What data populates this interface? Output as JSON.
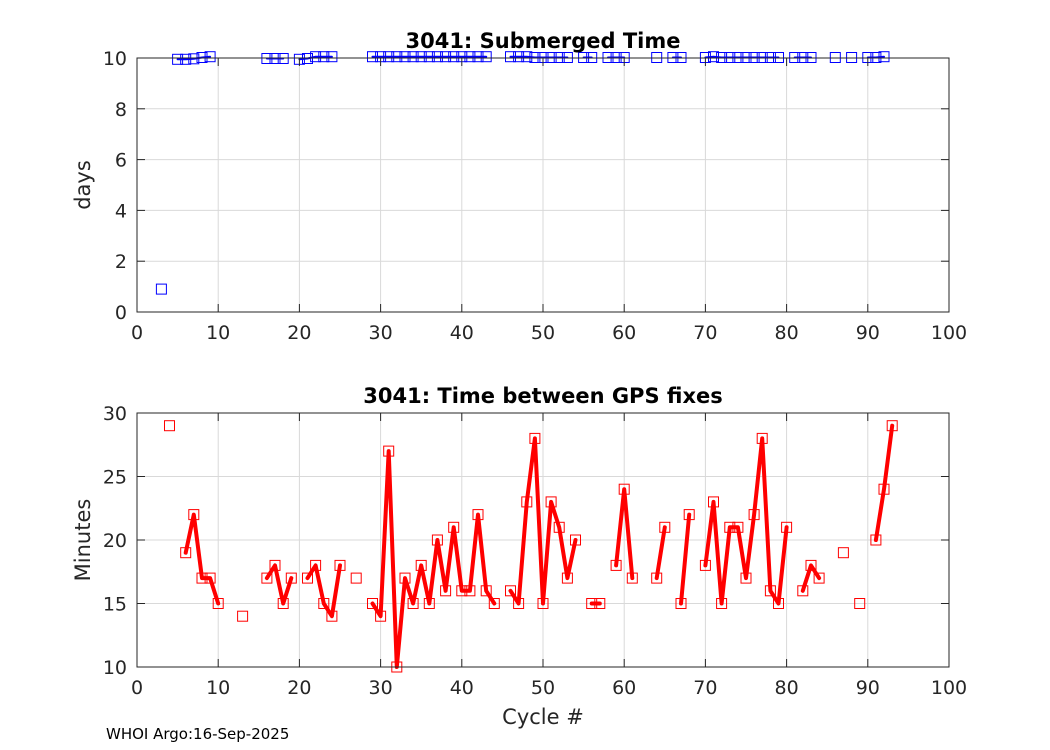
{
  "footer": "WHOI Argo:16-Sep-2025",
  "colors": {
    "top_series": "#0000ff",
    "bottom_series": "#ff0000",
    "grid": "#d9d9d9",
    "axis": "#262626"
  },
  "chart_data": [
    {
      "type": "scatter",
      "title": "3041: Submerged Time",
      "xlabel": "",
      "ylabel": "days",
      "xlim": [
        0,
        100
      ],
      "ylim": [
        0,
        10
      ],
      "xticks": [
        0,
        10,
        20,
        30,
        40,
        50,
        60,
        70,
        80,
        90,
        100
      ],
      "yticks": [
        0,
        2,
        4,
        6,
        8,
        10
      ],
      "grid": true,
      "series": [
        {
          "name": "Submerged Time",
          "marker": "square",
          "line": true,
          "x": [
            3,
            5,
            6,
            7,
            8,
            9,
            16,
            17,
            18,
            20,
            21,
            22,
            23,
            24,
            29,
            30,
            31,
            32,
            33,
            34,
            35,
            36,
            37,
            38,
            39,
            40,
            41,
            42,
            43,
            46,
            47,
            48,
            49,
            50,
            51,
            52,
            53,
            55,
            56,
            58,
            59,
            60,
            64,
            66,
            67,
            70,
            71,
            72,
            73,
            74,
            75,
            76,
            77,
            78,
            79,
            81,
            82,
            83,
            86,
            88,
            90,
            91,
            92
          ],
          "y": [
            0.9,
            9.95,
            9.95,
            9.97,
            10.02,
            10.05,
            9.98,
            9.98,
            9.98,
            9.95,
            9.98,
            10.05,
            10.05,
            10.05,
            10.05,
            10.05,
            10.05,
            10.05,
            10.05,
            10.05,
            10.05,
            10.05,
            10.05,
            10.05,
            10.05,
            10.05,
            10.05,
            10.05,
            10.05,
            10.05,
            10.05,
            10.05,
            10.02,
            10.02,
            10.02,
            10.02,
            10.02,
            10.02,
            10.02,
            10.02,
            10.02,
            10.02,
            10.02,
            10.02,
            10.02,
            10.02,
            10.05,
            10.02,
            10.02,
            10.02,
            10.02,
            10.02,
            10.02,
            10.02,
            10.02,
            10.02,
            10.02,
            10.02,
            10.02,
            10.02,
            10.02,
            10.02,
            10.05
          ]
        }
      ]
    },
    {
      "type": "line",
      "title": "3041: Time between GPS fixes",
      "xlabel": "Cycle #",
      "ylabel": "Minutes",
      "xlim": [
        0,
        100
      ],
      "ylim": [
        10,
        30
      ],
      "xticks": [
        0,
        10,
        20,
        30,
        40,
        50,
        60,
        70,
        80,
        90,
        100
      ],
      "yticks": [
        10,
        15,
        20,
        25,
        30
      ],
      "grid": true,
      "series": [
        {
          "name": "Time between GPS fixes",
          "marker": "square",
          "line": true,
          "x": [
            4,
            6,
            7,
            8,
            9,
            10,
            13,
            16,
            17,
            18,
            19,
            21,
            22,
            23,
            24,
            25,
            27,
            29,
            30,
            31,
            32,
            33,
            34,
            35,
            36,
            37,
            38,
            39,
            40,
            41,
            42,
            43,
            44,
            46,
            47,
            48,
            49,
            50,
            51,
            52,
            53,
            54,
            56,
            57,
            59,
            60,
            61,
            64,
            65,
            67,
            68,
            70,
            71,
            72,
            73,
            74,
            75,
            76,
            77,
            78,
            79,
            80,
            82,
            83,
            84,
            87,
            89,
            91,
            92,
            93
          ],
          "y": [
            29,
            19,
            22,
            17,
            17,
            15,
            14,
            17,
            18,
            15,
            17,
            17,
            18,
            15,
            14,
            18,
            17,
            15,
            14,
            27,
            10,
            17,
            15,
            18,
            15,
            20,
            16,
            21,
            16,
            16,
            22,
            16,
            15,
            16,
            15,
            23,
            28,
            15,
            23,
            21,
            17,
            20,
            15,
            15,
            18,
            24,
            17,
            17,
            21,
            15,
            22,
            18,
            23,
            15,
            21,
            21,
            17,
            22,
            28,
            16,
            15,
            21,
            16,
            18,
            17,
            19,
            15,
            20,
            24,
            29
          ]
        }
      ]
    }
  ]
}
